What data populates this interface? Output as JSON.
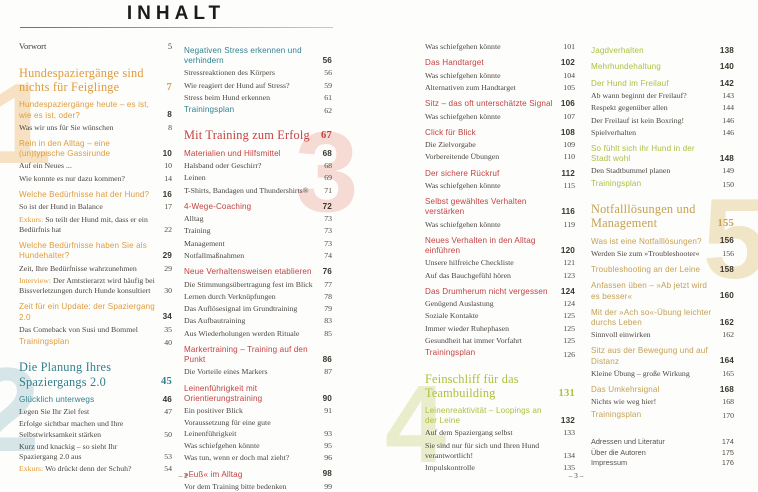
{
  "title": "INHALT",
  "footers": {
    "left": "– 2 –",
    "right": "– 3 –"
  },
  "palette": {
    "orange": "#DE9B3C",
    "teal": "#31808E",
    "red": "#C44141",
    "lime": "#AFBE3E",
    "tan": "#C5A154"
  },
  "watermarks": [
    {
      "digit": "1",
      "color": "#F6E2C3"
    },
    {
      "digit": "2",
      "color": "#D6E5E8"
    },
    {
      "digit": "3",
      "color": "#F5DBD4"
    },
    {
      "digit": "4",
      "color": "#EAEDCB"
    },
    {
      "digit": "5",
      "color": "#F0E5C6"
    }
  ],
  "columns": [
    {
      "entries": [
        {
          "t": "front",
          "label": "Vorwort",
          "page": "5"
        },
        {
          "t": "chapter",
          "c": "orange",
          "label": "Hundespaziergänge sind nichts für Feiglinge",
          "page": "7"
        },
        {
          "t": "subhead",
          "c": "orange",
          "label": "Hundespaziergänge heute – es ist, wie es ist, oder?",
          "page": "8"
        },
        {
          "t": "body",
          "label": "Was wir uns für Sie wünschen",
          "page": "8"
        },
        {
          "t": "subhead",
          "c": "orange",
          "label": "Rein in den Alltag – eine (un)typische Gassirunde",
          "page": "10"
        },
        {
          "t": "body",
          "label": "Auf ein Neues ...",
          "page": "10"
        },
        {
          "t": "body",
          "label": "Wie konnte es nur dazu kommen?",
          "page": "14"
        },
        {
          "t": "subhead",
          "c": "orange",
          "label": "Welche Bedürfnisse hat der Hund?",
          "page": "16"
        },
        {
          "t": "body",
          "label": "So ist der Hund in Balance",
          "page": "17"
        },
        {
          "t": "body",
          "prefix": "Exkurs:",
          "label": "So teilt der Hund mit, dass er ein Bedürfnis hat",
          "page": "22"
        },
        {
          "t": "subhead",
          "c": "orange",
          "label": "Welche Bedürfnisse haben Sie als Hundehalter?",
          "page": "29"
        },
        {
          "t": "body",
          "label": "Zeit, Ihre Bedürfnisse wahrzunehmen",
          "page": "29"
        },
        {
          "t": "body",
          "prefix": "Interview:",
          "label": "Der Amtstierarzt wird häufig bei Bissverletzungen durch Hunde konsultiert",
          "page": "30"
        },
        {
          "t": "subhead",
          "c": "orange",
          "label": "Zeit für ein Update: der Spaziergang 2.0",
          "page": "34"
        },
        {
          "t": "body",
          "label": "Das Comeback von Susi und Bommel",
          "page": "35"
        },
        {
          "t": "plan",
          "c": "orange",
          "label": "Trainingsplan",
          "page": "40"
        },
        {
          "t": "chapter",
          "c": "teal",
          "label": "Die Planung Ihres Spaziergangs 2.0",
          "page": "45"
        },
        {
          "t": "subhead",
          "c": "teal",
          "label": "Glücklich unterwegs",
          "page": "46"
        },
        {
          "t": "body",
          "label": "Legen Sie Ihr Ziel fest",
          "page": "47"
        },
        {
          "t": "body",
          "label": "Erfolge sichtbar machen und Ihre Selbstwirksamkeit stärken",
          "page": "50"
        },
        {
          "t": "body",
          "label": "Kurz und knackig – so sieht Ihr Spaziergang 2.0 aus",
          "page": "53"
        },
        {
          "t": "body",
          "prefix": "Exkurs:",
          "label": "Wo drückt denn der Schuh?",
          "page": "54"
        }
      ]
    },
    {
      "entries": [
        {
          "t": "subhead",
          "c": "teal",
          "label": "Negativen Stress erkennen und verhindern",
          "page": "56"
        },
        {
          "t": "body",
          "label": "Stressreaktionen des Körpers",
          "page": "56"
        },
        {
          "t": "body",
          "label": "Wie reagiert der Hund auf Stress?",
          "page": "59"
        },
        {
          "t": "body",
          "label": "Stress beim Hund erkennen",
          "page": "61"
        },
        {
          "t": "plan",
          "c": "teal",
          "label": "Trainingsplan",
          "page": "62"
        },
        {
          "t": "chapter",
          "c": "red",
          "label": "Mit Training zum Erfolg",
          "page": "67"
        },
        {
          "t": "subhead",
          "c": "red",
          "label": "Materialien und Hilfsmittel",
          "page": "68"
        },
        {
          "t": "body",
          "label": "Halsband oder Geschirr?",
          "page": "68"
        },
        {
          "t": "body",
          "label": "Leinen",
          "page": "69"
        },
        {
          "t": "body",
          "label": "T-Shirts, Bandagen und Thundershirts®",
          "page": "71"
        },
        {
          "t": "subhead",
          "c": "red",
          "label": "4-Wege-Coaching",
          "page": "72"
        },
        {
          "t": "body",
          "label": "Alltag",
          "page": "73"
        },
        {
          "t": "body",
          "label": "Training",
          "page": "73"
        },
        {
          "t": "body",
          "label": "Management",
          "page": "73"
        },
        {
          "t": "body",
          "label": "Notfallmaßnahmen",
          "page": "74"
        },
        {
          "t": "subhead",
          "c": "red",
          "label": "Neue Verhaltensweisen etablieren",
          "page": "76"
        },
        {
          "t": "body",
          "label": "Die Stimmungsübertragung fest im Blick",
          "page": "77"
        },
        {
          "t": "body",
          "label": "Lernen durch Verknüpfungen",
          "page": "78"
        },
        {
          "t": "body",
          "label": "Das Auflösesignal im Grundtraining",
          "page": "79"
        },
        {
          "t": "body",
          "label": "Das Aufbautraining",
          "page": "83"
        },
        {
          "t": "body",
          "label": "Aus Wiederholungen werden Rituale",
          "page": "85"
        },
        {
          "t": "subhead",
          "c": "red",
          "label": "Markertraining – Training auf den Punkt",
          "page": "86"
        },
        {
          "t": "body",
          "label": "Die Vorteile eines Markers",
          "page": "87"
        },
        {
          "t": "subhead",
          "c": "red",
          "label": "Leinenführigkeit mit Orientierungstraining",
          "page": "90"
        },
        {
          "t": "body",
          "label": "Ein positiver Blick",
          "page": "91"
        },
        {
          "t": "body",
          "label": "Voraussetzung für eine gute Leinenführigkeit",
          "page": "93"
        },
        {
          "t": "body",
          "label": "Was schiefgehen könnte",
          "page": "95"
        },
        {
          "t": "body",
          "label": "Was tun, wenn er doch mal zieht?",
          "page": "96"
        },
        {
          "t": "subhead",
          "c": "red",
          "label": "»Fuß« im Alltag",
          "page": "98"
        },
        {
          "t": "body",
          "label": "Vor dem Training bitte bedenken",
          "page": "99"
        }
      ]
    },
    {
      "entries": [
        {
          "t": "body",
          "label": "Was schiefgehen könnte",
          "page": "101"
        },
        {
          "t": "subhead",
          "c": "red",
          "label": "Das Handtarget",
          "page": "102"
        },
        {
          "t": "body",
          "label": "Was schiefgehen könnte",
          "page": "104"
        },
        {
          "t": "body",
          "label": "Alternativen zum Handtarget",
          "page": "105"
        },
        {
          "t": "subhead",
          "c": "red",
          "label": "Sitz – das oft unterschätzte Signal",
          "page": "106"
        },
        {
          "t": "body",
          "label": "Was schiefgehen könnte",
          "page": "107"
        },
        {
          "t": "subhead",
          "c": "red",
          "label": "Click für Blick",
          "page": "108"
        },
        {
          "t": "body",
          "label": "Die Zielvorgabe",
          "page": "109"
        },
        {
          "t": "body",
          "label": "Vorbereitende Übungen",
          "page": "110"
        },
        {
          "t": "subhead",
          "c": "red",
          "label": "Der sichere Rückruf",
          "page": "112"
        },
        {
          "t": "body",
          "label": "Was schiefgehen könnte",
          "page": "115"
        },
        {
          "t": "subhead",
          "c": "red",
          "label": "Selbst gewähltes Verhalten verstärken",
          "page": "116"
        },
        {
          "t": "body",
          "label": "Was schiefgehen könnte",
          "page": "119"
        },
        {
          "t": "subhead",
          "c": "red",
          "label": "Neues Verhalten in den Alltag einführen",
          "page": "120"
        },
        {
          "t": "body",
          "label": "Unsere hilfreiche Checkliste",
          "page": "121"
        },
        {
          "t": "body",
          "label": "Auf das Bauchgefühl hören",
          "page": "123"
        },
        {
          "t": "subhead",
          "c": "red",
          "label": "Das Drumherum nicht vergessen",
          "page": "124"
        },
        {
          "t": "body",
          "label": "Genügend Auslastung",
          "page": "124"
        },
        {
          "t": "body",
          "label": "Soziale Kontakte",
          "page": "125"
        },
        {
          "t": "body",
          "label": "Immer wieder Ruhephasen",
          "page": "125"
        },
        {
          "t": "body",
          "label": "Gesundheit hat immer Vorfahrt",
          "page": "125"
        },
        {
          "t": "plan",
          "c": "red",
          "label": "Trainingsplan",
          "page": "126"
        },
        {
          "t": "chapter",
          "c": "lime",
          "label": "Feinschliff für das Teambuilding",
          "page": "131"
        },
        {
          "t": "subhead",
          "c": "lime",
          "label": "Leinenreaktivität – Loopings an der Leine",
          "page": "132"
        },
        {
          "t": "body",
          "label": "Auf dem Spaziergang selbst",
          "page": "133"
        },
        {
          "t": "body",
          "label": "Sie sind nur für sich und Ihren Hund verantwortlich!",
          "page": "134"
        },
        {
          "t": "body",
          "label": "Impulskontrolle",
          "page": "135"
        }
      ]
    },
    {
      "entries": [
        {
          "t": "subhead",
          "c": "lime",
          "label": "Jagdverhalten",
          "page": "138"
        },
        {
          "t": "subhead",
          "c": "lime",
          "label": "Mehrhundehaltung",
          "page": "140"
        },
        {
          "t": "subhead",
          "c": "lime",
          "label": "Der Hund im Freilauf",
          "page": "142"
        },
        {
          "t": "body",
          "label": "Ab wann beginnt der Freilauf?",
          "page": "143"
        },
        {
          "t": "body",
          "label": "Respekt gegenüber allen",
          "page": "144"
        },
        {
          "t": "body",
          "label": "Der Freilauf ist kein Boxring!",
          "page": "146"
        },
        {
          "t": "body",
          "label": "Spielverhalten",
          "page": "146"
        },
        {
          "t": "subhead",
          "c": "lime",
          "label": "So fühlt sich ihr Hund in der Stadt wohl",
          "page": "148"
        },
        {
          "t": "body",
          "label": "Den Stadtbummel planen",
          "page": "149"
        },
        {
          "t": "plan",
          "c": "lime",
          "label": "Trainingsplan",
          "page": "150"
        },
        {
          "t": "chapter",
          "c": "tan",
          "label": "Notfalllösungen und Management",
          "page": "155"
        },
        {
          "t": "subhead",
          "c": "tan",
          "label": "Was ist eine Notfalllösungen?",
          "page": "156"
        },
        {
          "t": "body",
          "label": "Werden Sie zum »Troubleshooter«",
          "page": "156"
        },
        {
          "t": "subhead",
          "c": "tan",
          "label": "Troubleshooting an der Leine",
          "page": "158"
        },
        {
          "t": "subhead",
          "c": "tan",
          "label": "Anfassen üben – »Ab jetzt wird es besser«",
          "page": "160"
        },
        {
          "t": "subhead",
          "c": "tan",
          "label": "Mit der »Ach so«-Übung leichter durchs Leben",
          "page": "162"
        },
        {
          "t": "body",
          "label": "Sinnvoll einwirken",
          "page": "162"
        },
        {
          "t": "subhead",
          "c": "tan",
          "label": "Sitz aus der Bewegung und auf Distanz",
          "page": "164"
        },
        {
          "t": "body",
          "label": "Kleine Übung – große Wirkung",
          "page": "165"
        },
        {
          "t": "subhead",
          "c": "tan",
          "label": "Das Umkehrsignal",
          "page": "168"
        },
        {
          "t": "body",
          "label": "Nichts wie weg hier!",
          "page": "168"
        },
        {
          "t": "plan",
          "c": "tan",
          "label": "Trainingsplan",
          "page": "170"
        },
        {
          "t": "back",
          "label": "Adressen und Literatur",
          "page": "174"
        },
        {
          "t": "back",
          "label": "Über die Autoren",
          "page": "175"
        },
        {
          "t": "back",
          "label": "Impressum",
          "page": "176"
        }
      ]
    }
  ]
}
